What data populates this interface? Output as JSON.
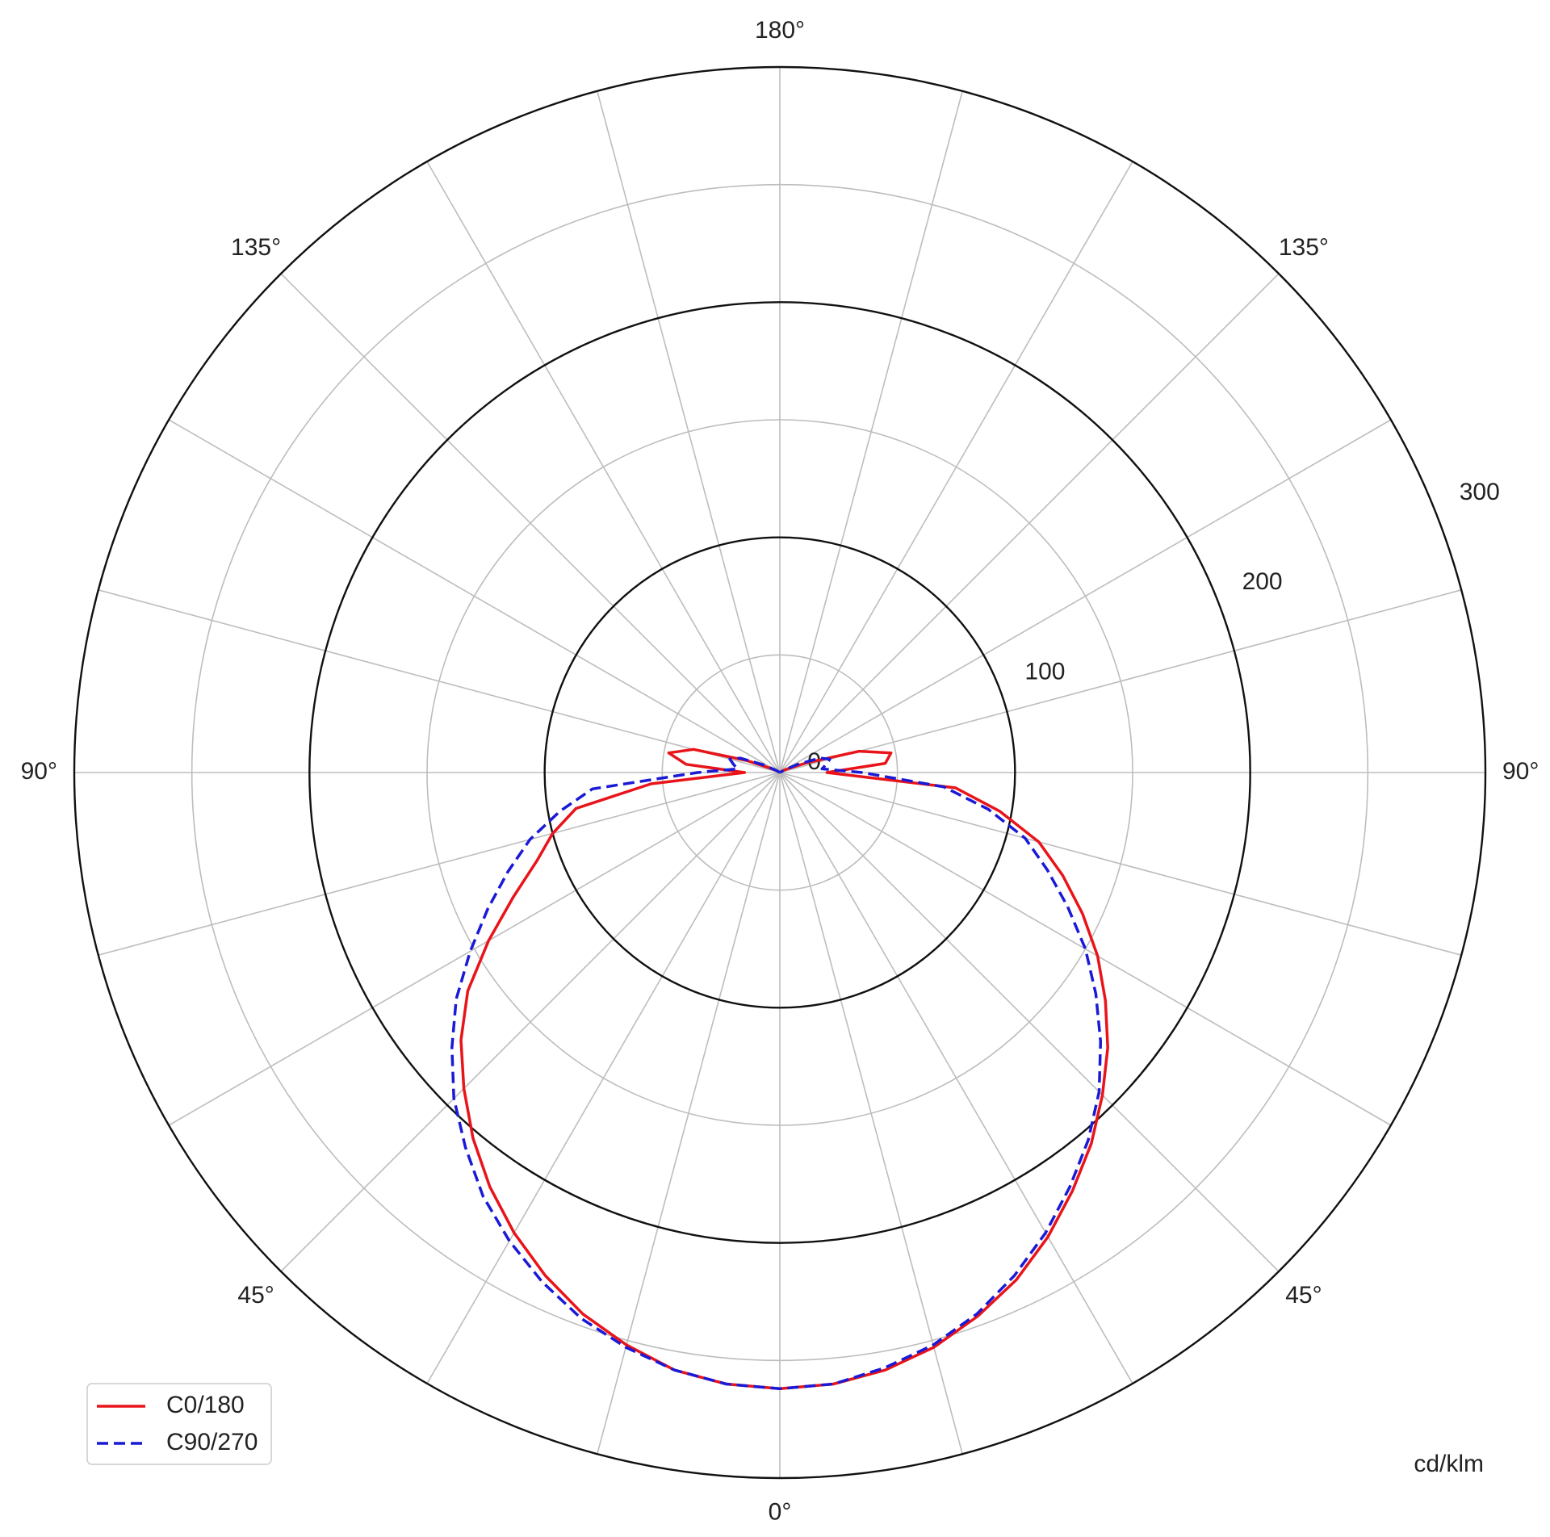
{
  "chart_data": {
    "type": "polar",
    "unit_label": "cd/klm",
    "x": [
      -180,
      -175,
      -170,
      -165,
      -160,
      -155,
      -150,
      -145,
      -140,
      -135,
      -130,
      -125,
      -120,
      -115,
      -110,
      -105,
      -100,
      -95,
      -90,
      -85,
      -80,
      -75,
      -70,
      -65,
      -60,
      -55,
      -50,
      -45,
      -40,
      -35,
      -30,
      -25,
      -20,
      -15,
      -10,
      -5,
      0,
      5,
      10,
      15,
      20,
      25,
      30,
      35,
      40,
      45,
      50,
      55,
      60,
      65,
      70,
      75,
      80,
      85,
      90,
      95,
      100,
      105,
      110,
      115,
      120,
      125,
      130,
      135,
      140,
      145,
      150,
      155,
      160,
      165,
      170,
      175,
      180
    ],
    "series": [
      {
        "name": "C0/180",
        "color": "#e8141a",
        "dash": false,
        "values": [
          0,
          0,
          0,
          0,
          0,
          0,
          0,
          0,
          0,
          0,
          0,
          0,
          2,
          4,
          15,
          38,
          48,
          40,
          15,
          55,
          88,
          100,
          110,
          125,
          143,
          162,
          177,
          190,
          203,
          215,
          226,
          236,
          245,
          252,
          258,
          261,
          262,
          261,
          258,
          253,
          246,
          238,
          228,
          217,
          206,
          194,
          182,
          169,
          156,
          142,
          128,
          114,
          95,
          75,
          20,
          45,
          48,
          35,
          12,
          4,
          2,
          0,
          0,
          0,
          0,
          0,
          0,
          0,
          0,
          0,
          0,
          0,
          0
        ]
      },
      {
        "name": "C90/270",
        "color": "#1a1ad6",
        "dash": true,
        "values": [
          0,
          0,
          0,
          0,
          0,
          0,
          0,
          0,
          0,
          0,
          0,
          0,
          2,
          8,
          18,
          22,
          20,
          18,
          35,
          80,
          95,
          110,
          123,
          137,
          152,
          168,
          182,
          196,
          208,
          220,
          230,
          239,
          247,
          253,
          258,
          261,
          262,
          261,
          257,
          252,
          245,
          236,
          226,
          215,
          204,
          192,
          178,
          164,
          150,
          135,
          121,
          108,
          90,
          70,
          35,
          18,
          20,
          22,
          18,
          8,
          2,
          0,
          0,
          0,
          0,
          0,
          0,
          0,
          0,
          0,
          0,
          0,
          0
        ]
      }
    ],
    "xticks": [
      {
        "value": 0,
        "label": "0°"
      },
      {
        "value": 45,
        "label": "45°"
      },
      {
        "value": 90,
        "label": "90°"
      },
      {
        "value": 135,
        "label": "135°"
      },
      {
        "value": 180,
        "label": "180°"
      },
      {
        "value": -135,
        "label": "135°"
      },
      {
        "value": -90,
        "label": "90°"
      },
      {
        "value": -45,
        "label": "45°"
      }
    ],
    "xgrid_step": 15,
    "ylim": [
      0,
      300
    ],
    "yticks": [
      0,
      100,
      200,
      300
    ],
    "yminor_ticks": [
      50,
      150,
      250
    ],
    "grid": true,
    "legend": "lower left"
  }
}
